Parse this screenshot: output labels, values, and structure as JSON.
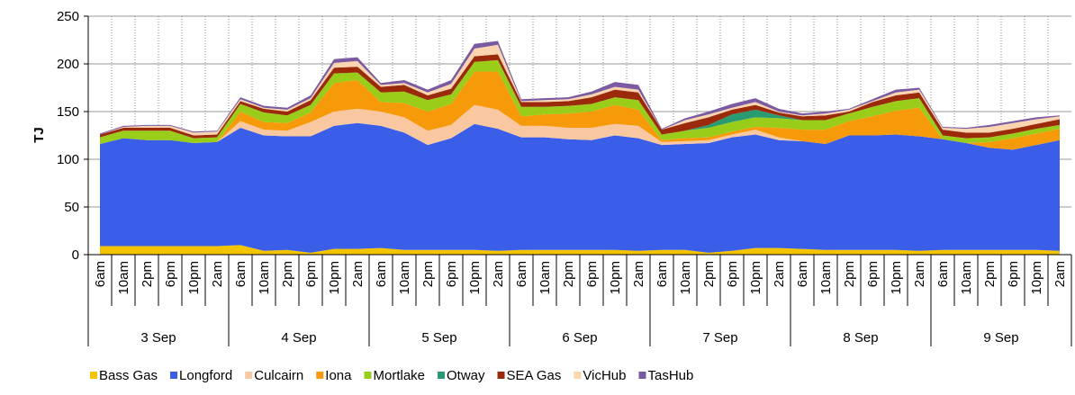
{
  "chart_data": {
    "type": "stacked-area",
    "y_label": "TJ",
    "categories": [
      "6am",
      "10am",
      "2pm",
      "6pm",
      "10pm",
      "2am",
      "6am",
      "10am",
      "2pm",
      "6pm",
      "10pm",
      "2am",
      "6am",
      "10am",
      "2pm",
      "6pm",
      "10pm",
      "2am",
      "6am",
      "10am",
      "2pm",
      "6pm",
      "10pm",
      "2am",
      "6am",
      "10am",
      "2pm",
      "6pm",
      "10pm",
      "2am",
      "6am",
      "10am",
      "2pm",
      "6pm",
      "10pm",
      "2am",
      "6am",
      "10am",
      "2pm",
      "6pm",
      "10pm",
      "2am"
    ],
    "days": [
      "3 Sep",
      "4 Sep",
      "5 Sep",
      "6 Sep",
      "7 Sep",
      "8 Sep",
      "9 Sep"
    ],
    "ylim": [
      0,
      250
    ],
    "yticks": [
      0,
      50,
      100,
      150,
      200,
      250
    ],
    "grid": true,
    "series": [
      {
        "name": "Bass Gas",
        "color": "#f5c400",
        "values": [
          9,
          9,
          9,
          9,
          9,
          9,
          10,
          4,
          5,
          2,
          6,
          6,
          7,
          5,
          5,
          5,
          5,
          4,
          5,
          5,
          5,
          5,
          5,
          4,
          5,
          5,
          2,
          4,
          7,
          7,
          6,
          5,
          5,
          5,
          5,
          4,
          5,
          5,
          5,
          5,
          5,
          4
        ]
      },
      {
        "name": "Longford",
        "color": "#3a5ee8",
        "values": [
          107,
          113,
          111,
          111,
          108,
          109,
          123,
          121,
          119,
          122,
          129,
          132,
          128,
          123,
          110,
          117,
          132,
          128,
          118,
          118,
          116,
          115,
          120,
          118,
          110,
          111,
          115,
          119,
          119,
          113,
          113,
          111,
          120,
          120,
          121,
          120,
          116,
          112,
          107,
          105,
          110,
          116
        ]
      },
      {
        "name": "Culcairn",
        "color": "#f9c8a0",
        "values": [
          0,
          0,
          0,
          0,
          0,
          0,
          7,
          6,
          6,
          15,
          15,
          15,
          15,
          16,
          15,
          14,
          20,
          20,
          12,
          12,
          12,
          13,
          12,
          13,
          3,
          3,
          3,
          3,
          5,
          3,
          0,
          0,
          0,
          0,
          0,
          0,
          0,
          0,
          0,
          0,
          0,
          0
        ]
      },
      {
        "name": "Iona",
        "color": "#f79a0a",
        "values": [
          0,
          0,
          0,
          0,
          0,
          0,
          10,
          8,
          8,
          10,
          30,
          30,
          10,
          15,
          20,
          22,
          35,
          40,
          10,
          12,
          15,
          17,
          20,
          17,
          2,
          3,
          3,
          3,
          3,
          10,
          12,
          15,
          15,
          20,
          25,
          30,
          0,
          0,
          6,
          12,
          12,
          12
        ]
      },
      {
        "name": "Mortlake",
        "color": "#9acd1a",
        "values": [
          7,
          8,
          10,
          10,
          5,
          5,
          8,
          10,
          8,
          8,
          10,
          8,
          10,
          12,
          12,
          10,
          10,
          12,
          10,
          8,
          8,
          8,
          8,
          10,
          6,
          8,
          10,
          10,
          10,
          10,
          10,
          10,
          8,
          10,
          10,
          10,
          4,
          5,
          5,
          5,
          5,
          4
        ]
      },
      {
        "name": "Otway",
        "color": "#2a9a70",
        "values": [
          0,
          0,
          0,
          0,
          0,
          0,
          0,
          0,
          0,
          0,
          0,
          0,
          0,
          0,
          0,
          0,
          0,
          0,
          0,
          0,
          0,
          0,
          0,
          0,
          0,
          0,
          3,
          8,
          8,
          3,
          0,
          0,
          0,
          0,
          0,
          0,
          0,
          0,
          0,
          0,
          0,
          0
        ]
      },
      {
        "name": "SEA Gas",
        "color": "#9a2a0a",
        "values": [
          3,
          3,
          3,
          3,
          3,
          3,
          3,
          4,
          4,
          5,
          6,
          6,
          6,
          7,
          5,
          6,
          6,
          6,
          5,
          5,
          5,
          7,
          8,
          8,
          5,
          8,
          8,
          5,
          5,
          3,
          4,
          5,
          2,
          5,
          6,
          6,
          6,
          6,
          5,
          5,
          5,
          6
        ]
      },
      {
        "name": "VicHub",
        "color": "#fbd4b0",
        "values": [
          0,
          1,
          2,
          2,
          3,
          3,
          2,
          1,
          2,
          2,
          5,
          6,
          2,
          2,
          3,
          5,
          8,
          10,
          1,
          2,
          2,
          3,
          3,
          3,
          0,
          3,
          3,
          2,
          3,
          1,
          1,
          2,
          2,
          1,
          3,
          3,
          2,
          4,
          6,
          6,
          5,
          3
        ]
      },
      {
        "name": "TasHub",
        "color": "#7a5aa0",
        "values": [
          1,
          1,
          1,
          1,
          1,
          1,
          2,
          2,
          2,
          3,
          4,
          4,
          2,
          3,
          3,
          4,
          5,
          4,
          2,
          2,
          2,
          3,
          5,
          5,
          1,
          2,
          3,
          4,
          4,
          3,
          2,
          2,
          1,
          2,
          3,
          2,
          1,
          1,
          2,
          2,
          2,
          1
        ]
      }
    ]
  }
}
